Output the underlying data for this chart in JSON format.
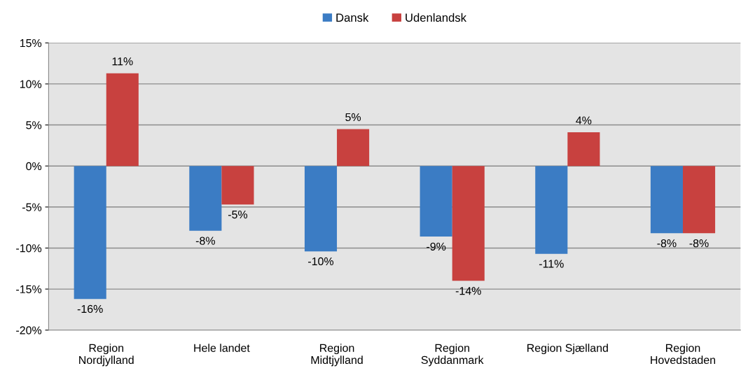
{
  "chart_data": {
    "type": "bar",
    "categories": [
      "Region\nNordjylland",
      "Hele landet",
      "Region\nMidtjylland",
      "Region\nSyddanmark",
      "Region Sjælland",
      "Region\nHovedstaden"
    ],
    "series": [
      {
        "name": "Dansk",
        "color": "#3b7cc4",
        "values": [
          -16.2,
          -7.9,
          -10.4,
          -8.6,
          -10.7,
          -8.2
        ],
        "value_labels": [
          "-16%",
          "-8%",
          "-10%",
          "-9%",
          "-11%",
          "-8%"
        ]
      },
      {
        "name": "Udenlandsk",
        "color": "#c8413f",
        "values": [
          11.3,
          -4.7,
          4.5,
          -14.0,
          4.1,
          -8.2
        ],
        "value_labels": [
          "11%",
          "-5%",
          "5%",
          "-14%",
          "4%",
          "-8%"
        ]
      }
    ],
    "ylim": [
      -20,
      15
    ],
    "yticks": [
      {
        "value": -20,
        "label": "-20%"
      },
      {
        "value": -15,
        "label": "-15%"
      },
      {
        "value": -10,
        "label": "-10%"
      },
      {
        "value": -5,
        "label": "-5%"
      },
      {
        "value": 0,
        "label": "0%"
      },
      {
        "value": 5,
        "label": "5%"
      },
      {
        "value": 10,
        "label": "10%"
      },
      {
        "value": 15,
        "label": "15%"
      }
    ],
    "grid": "y",
    "legend": "top"
  }
}
